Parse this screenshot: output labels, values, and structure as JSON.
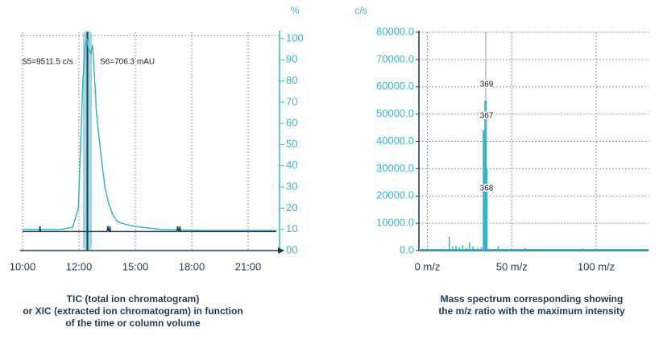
{
  "chart_data": [
    {
      "type": "line",
      "y_label": "%",
      "annotations": [
        "S5=9511.5 c/s",
        "S6=706.3 mAU"
      ],
      "caption": [
        "TIC (total ion chromatogram)",
        "or XIC (extracted ion chromatogram) in function",
        "of the time or column volume"
      ],
      "xlim": [
        0,
        4.5
      ],
      "xticks": [
        {
          "value": 0,
          "label": "10:00"
        },
        {
          "value": 1,
          "label": "12:00"
        },
        {
          "value": 2,
          "label": "15:00"
        },
        {
          "value": 3,
          "label": "18:00"
        },
        {
          "value": 4,
          "label": "21:00"
        }
      ],
      "ylim": [
        0,
        103
      ],
      "yticks": [
        {
          "value": 0,
          "label": "00"
        },
        10,
        20,
        30,
        40,
        50,
        60,
        70,
        80,
        90,
        100
      ],
      "grid": true,
      "series": [
        {
          "color": "#3ab5c8",
          "x": [
            0,
            0.67,
            0.89,
            0.99,
            1.03,
            1.07,
            1.11,
            1.14,
            1.17,
            1.21,
            1.24,
            1.27,
            1.31,
            1.39,
            1.46,
            1.53,
            1.6,
            1.67,
            1.74,
            1.89,
            2.1,
            2.46,
            3.17,
            4.5
          ],
          "values": [
            10,
            10,
            11,
            20,
            50,
            80,
            97,
            100,
            95,
            93,
            97,
            85,
            65,
            45,
            30,
            22,
            17,
            14,
            13,
            12,
            11,
            10,
            9.5,
            9.5
          ]
        },
        {
          "color": "#1f3a5a",
          "x": [
            0,
            0.3,
            0.31,
            0.32,
            1.5,
            1.51,
            1.53,
            1.54,
            1.55,
            1.56,
            2.74,
            2.75,
            2.77,
            2.78,
            2.79,
            2.8,
            4.5
          ],
          "values": [
            9,
            9,
            11.5,
            9,
            9,
            11.5,
            9,
            9,
            11.5,
            9,
            9,
            11.5,
            9,
            9,
            11.5,
            9,
            9
          ]
        }
      ]
    },
    {
      "type": "stem",
      "y_label": "c/s",
      "annotations": [
        "369",
        "367",
        "368"
      ],
      "caption": [
        "Mass spectrum corresponding showing",
        "the m/z ratio with the maximum intensity"
      ],
      "xlim": [
        -5,
        131
      ],
      "xticks": [
        {
          "value": 0,
          "label": "0 m/z"
        },
        {
          "value": 50,
          "label": "50 m/z"
        },
        {
          "value": 100,
          "label": "100 m/z"
        }
      ],
      "ylim": [
        0,
        80000
      ],
      "yticks": [
        {
          "value": 0,
          "label": "0.0"
        },
        {
          "value": 10000,
          "label": "10000.0"
        },
        {
          "value": 20000,
          "label": "20000.0"
        },
        {
          "value": 30000,
          "label": "30000.0"
        },
        {
          "value": 40000,
          "label": "40000.0"
        },
        {
          "value": 50000,
          "label": "50000.0"
        },
        {
          "value": 60000,
          "label": "60000.0"
        },
        {
          "value": 70000,
          "label": "70000.0"
        },
        {
          "value": 80000,
          "label": "80000.0"
        }
      ],
      "grid": true,
      "color": "#3ab5c8",
      "x": [
        13,
        15,
        17,
        19,
        21,
        23,
        25,
        27,
        30,
        32,
        33.5,
        34.5,
        34.9,
        42,
        58,
        92
      ],
      "values": [
        5000,
        1500,
        1800,
        1200,
        2000,
        1000,
        3000,
        1500,
        1000,
        1200,
        44000,
        55000,
        30000,
        1500,
        1000,
        800
      ]
    }
  ]
}
